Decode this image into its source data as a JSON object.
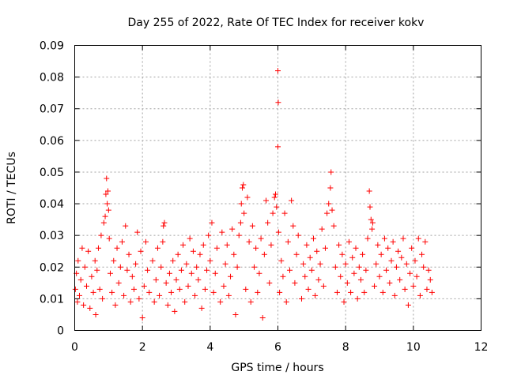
{
  "chart_data": {
    "type": "scatter",
    "title": "Day 255 of 2022, Rate Of TEC Index for receiver kokv",
    "xlabel": "GPS time / hours",
    "ylabel": "ROTI / TECUs",
    "xlim": [
      0,
      12
    ],
    "ylim": [
      0,
      0.09
    ],
    "xticks": [
      "0",
      "2",
      "4",
      "6",
      "8",
      "10",
      "12"
    ],
    "yticks": [
      "0",
      "0.01",
      "0.02",
      "0.03",
      "0.04",
      "0.05",
      "0.06",
      "0.07",
      "0.08",
      "0.09"
    ],
    "grid": true,
    "marker": "+",
    "color": "#ff0000",
    "series": [
      {
        "points": [
          [
            0.02,
            0.013
          ],
          [
            0.05,
            0.018
          ],
          [
            0.08,
            0.009
          ],
          [
            0.1,
            0.022
          ],
          [
            0.14,
            0.011
          ],
          [
            0.18,
            0.016
          ],
          [
            0.22,
            0.026
          ],
          [
            0.26,
            0.008
          ],
          [
            0.3,
            0.02
          ],
          [
            0.35,
            0.014
          ],
          [
            0.4,
            0.025
          ],
          [
            0.45,
            0.007
          ],
          [
            0.5,
            0.017
          ],
          [
            0.55,
            0.012
          ],
          [
            0.6,
            0.022
          ],
          [
            0.62,
            0.005
          ],
          [
            0.66,
            0.019
          ],
          [
            0.7,
            0.026
          ],
          [
            0.74,
            0.013
          ],
          [
            0.78,
            0.03
          ],
          [
            0.82,
            0.01
          ],
          [
            0.86,
            0.034
          ],
          [
            0.9,
            0.036
          ],
          [
            0.92,
            0.043
          ],
          [
            0.94,
            0.048
          ],
          [
            0.96,
            0.04
          ],
          [
            0.98,
            0.044
          ],
          [
            1.0,
            0.038
          ],
          [
            1.02,
            0.029
          ],
          [
            1.05,
            0.018
          ],
          [
            1.1,
            0.012
          ],
          [
            1.15,
            0.022
          ],
          [
            1.2,
            0.008
          ],
          [
            1.25,
            0.026
          ],
          [
            1.3,
            0.015
          ],
          [
            1.35,
            0.02
          ],
          [
            1.4,
            0.028
          ],
          [
            1.45,
            0.011
          ],
          [
            1.5,
            0.033
          ],
          [
            1.55,
            0.019
          ],
          [
            1.6,
            0.024
          ],
          [
            1.65,
            0.009
          ],
          [
            1.7,
            0.017
          ],
          [
            1.75,
            0.013
          ],
          [
            1.8,
            0.021
          ],
          [
            1.85,
            0.031
          ],
          [
            1.9,
            0.01
          ],
          [
            1.95,
            0.025
          ],
          [
            2.0,
            0.004
          ],
          [
            2.05,
            0.014
          ],
          [
            2.1,
            0.028
          ],
          [
            2.15,
            0.019
          ],
          [
            2.2,
            0.012
          ],
          [
            2.3,
            0.022
          ],
          [
            2.35,
            0.009
          ],
          [
            2.4,
            0.016
          ],
          [
            2.45,
            0.026
          ],
          [
            2.5,
            0.011
          ],
          [
            2.55,
            0.02
          ],
          [
            2.6,
            0.028
          ],
          [
            2.62,
            0.033
          ],
          [
            2.65,
            0.034
          ],
          [
            2.7,
            0.015
          ],
          [
            2.75,
            0.008
          ],
          [
            2.8,
            0.018
          ],
          [
            2.85,
            0.012
          ],
          [
            2.9,
            0.022
          ],
          [
            2.95,
            0.006
          ],
          [
            3.0,
            0.016
          ],
          [
            3.05,
            0.024
          ],
          [
            3.1,
            0.013
          ],
          [
            3.15,
            0.019
          ],
          [
            3.2,
            0.027
          ],
          [
            3.25,
            0.009
          ],
          [
            3.3,
            0.021
          ],
          [
            3.35,
            0.014
          ],
          [
            3.4,
            0.029
          ],
          [
            3.45,
            0.018
          ],
          [
            3.5,
            0.025
          ],
          [
            3.55,
            0.011
          ],
          [
            3.6,
            0.02
          ],
          [
            3.65,
            0.016
          ],
          [
            3.7,
            0.024
          ],
          [
            3.75,
            0.007
          ],
          [
            3.8,
            0.027
          ],
          [
            3.85,
            0.013
          ],
          [
            3.9,
            0.019
          ],
          [
            3.95,
            0.03
          ],
          [
            4.0,
            0.022
          ],
          [
            4.05,
            0.034
          ],
          [
            4.1,
            0.012
          ],
          [
            4.15,
            0.018
          ],
          [
            4.2,
            0.026
          ],
          [
            4.3,
            0.009
          ],
          [
            4.35,
            0.031
          ],
          [
            4.4,
            0.014
          ],
          [
            4.45,
            0.021
          ],
          [
            4.5,
            0.027
          ],
          [
            4.55,
            0.011
          ],
          [
            4.6,
            0.017
          ],
          [
            4.65,
            0.032
          ],
          [
            4.7,
            0.024
          ],
          [
            4.75,
            0.005
          ],
          [
            4.8,
            0.02
          ],
          [
            4.85,
            0.03
          ],
          [
            4.9,
            0.034
          ],
          [
            4.92,
            0.04
          ],
          [
            4.95,
            0.045
          ],
          [
            4.98,
            0.046
          ],
          [
            5.0,
            0.037
          ],
          [
            5.05,
            0.013
          ],
          [
            5.1,
            0.042
          ],
          [
            5.15,
            0.028
          ],
          [
            5.2,
            0.009
          ],
          [
            5.25,
            0.033
          ],
          [
            5.3,
            0.02
          ],
          [
            5.35,
            0.026
          ],
          [
            5.4,
            0.012
          ],
          [
            5.45,
            0.018
          ],
          [
            5.5,
            0.029
          ],
          [
            5.55,
            0.004
          ],
          [
            5.6,
            0.024
          ],
          [
            5.65,
            0.041
          ],
          [
            5.7,
            0.034
          ],
          [
            5.75,
            0.015
          ],
          [
            5.8,
            0.027
          ],
          [
            5.85,
            0.037
          ],
          [
            5.9,
            0.042
          ],
          [
            5.93,
            0.043
          ],
          [
            5.96,
            0.039
          ],
          [
            6.0,
            0.082
          ],
          [
            6.01,
            0.072
          ],
          [
            6.0,
            0.058
          ],
          [
            6.02,
            0.031
          ],
          [
            6.05,
            0.012
          ],
          [
            6.1,
            0.022
          ],
          [
            6.15,
            0.017
          ],
          [
            6.2,
            0.037
          ],
          [
            6.25,
            0.009
          ],
          [
            6.3,
            0.028
          ],
          [
            6.35,
            0.019
          ],
          [
            6.4,
            0.041
          ],
          [
            6.45,
            0.033
          ],
          [
            6.5,
            0.015
          ],
          [
            6.55,
            0.024
          ],
          [
            6.6,
            0.03
          ],
          [
            6.7,
            0.01
          ],
          [
            6.75,
            0.021
          ],
          [
            6.8,
            0.017
          ],
          [
            6.85,
            0.027
          ],
          [
            6.9,
            0.013
          ],
          [
            6.95,
            0.023
          ],
          [
            7.0,
            0.019
          ],
          [
            7.05,
            0.029
          ],
          [
            7.1,
            0.011
          ],
          [
            7.15,
            0.025
          ],
          [
            7.2,
            0.016
          ],
          [
            7.25,
            0.021
          ],
          [
            7.3,
            0.032
          ],
          [
            7.35,
            0.014
          ],
          [
            7.4,
            0.026
          ],
          [
            7.45,
            0.037
          ],
          [
            7.5,
            0.04
          ],
          [
            7.55,
            0.045
          ],
          [
            7.57,
            0.05
          ],
          [
            7.6,
            0.038
          ],
          [
            7.65,
            0.033
          ],
          [
            7.7,
            0.02
          ],
          [
            7.75,
            0.012
          ],
          [
            7.8,
            0.027
          ],
          [
            7.85,
            0.017
          ],
          [
            7.9,
            0.024
          ],
          [
            7.95,
            0.009
          ],
          [
            8.0,
            0.021
          ],
          [
            8.05,
            0.015
          ],
          [
            8.1,
            0.028
          ],
          [
            8.15,
            0.012
          ],
          [
            8.2,
            0.023
          ],
          [
            8.25,
            0.018
          ],
          [
            8.3,
            0.026
          ],
          [
            8.35,
            0.01
          ],
          [
            8.4,
            0.02
          ],
          [
            8.45,
            0.016
          ],
          [
            8.5,
            0.024
          ],
          [
            8.55,
            0.012
          ],
          [
            8.6,
            0.019
          ],
          [
            8.65,
            0.029
          ],
          [
            8.7,
            0.044
          ],
          [
            8.72,
            0.039
          ],
          [
            8.75,
            0.035
          ],
          [
            8.78,
            0.032
          ],
          [
            8.8,
            0.034
          ],
          [
            8.85,
            0.014
          ],
          [
            8.9,
            0.021
          ],
          [
            8.95,
            0.027
          ],
          [
            9.0,
            0.017
          ],
          [
            9.05,
            0.024
          ],
          [
            9.1,
            0.012
          ],
          [
            9.15,
            0.029
          ],
          [
            9.2,
            0.019
          ],
          [
            9.25,
            0.026
          ],
          [
            9.3,
            0.015
          ],
          [
            9.35,
            0.022
          ],
          [
            9.4,
            0.028
          ],
          [
            9.45,
            0.011
          ],
          [
            9.5,
            0.02
          ],
          [
            9.55,
            0.025
          ],
          [
            9.6,
            0.016
          ],
          [
            9.65,
            0.023
          ],
          [
            9.7,
            0.029
          ],
          [
            9.75,
            0.013
          ],
          [
            9.8,
            0.021
          ],
          [
            9.85,
            0.008
          ],
          [
            9.9,
            0.018
          ],
          [
            9.95,
            0.026
          ],
          [
            10.0,
            0.014
          ],
          [
            10.05,
            0.022
          ],
          [
            10.1,
            0.017
          ],
          [
            10.15,
            0.029
          ],
          [
            10.2,
            0.011
          ],
          [
            10.25,
            0.024
          ],
          [
            10.3,
            0.02
          ],
          [
            10.35,
            0.028
          ],
          [
            10.4,
            0.013
          ],
          [
            10.45,
            0.019
          ],
          [
            10.5,
            0.016
          ],
          [
            10.55,
            0.012
          ]
        ]
      }
    ]
  }
}
